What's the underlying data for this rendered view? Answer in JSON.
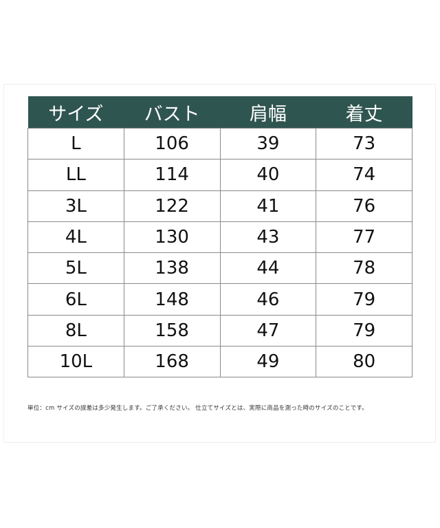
{
  "colors": {
    "header_bg": "#2f5550",
    "header_text": "#ffffff",
    "border": "#8a8a8a"
  },
  "table": {
    "headers": [
      "サイズ",
      "バスト",
      "肩幅",
      "着丈"
    ],
    "rows": [
      [
        "L",
        "106",
        "39",
        "73"
      ],
      [
        "LL",
        "114",
        "40",
        "74"
      ],
      [
        "3L",
        "122",
        "41",
        "76"
      ],
      [
        "4L",
        "130",
        "43",
        "77"
      ],
      [
        "5L",
        "138",
        "44",
        "78"
      ],
      [
        "6L",
        "148",
        "46",
        "79"
      ],
      [
        "8L",
        "158",
        "47",
        "79"
      ],
      [
        "10L",
        "168",
        "49",
        "80"
      ]
    ]
  },
  "footnote": "単位：cm サイズの誤差は多少発生します。ご了承ください。 仕立てサイズとは、実際に商品を測った時のサイズのことです。"
}
